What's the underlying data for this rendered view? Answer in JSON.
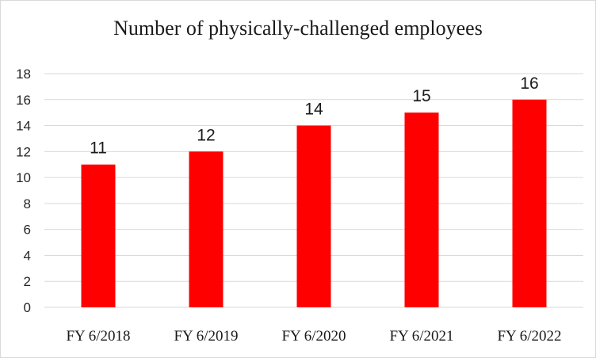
{
  "chart_data": {
    "type": "bar",
    "title": "Number of physically-challenged employees",
    "categories": [
      "FY 6/2018",
      "FY 6/2019",
      "FY 6/2020",
      "FY 6/2021",
      "FY 6/2022"
    ],
    "values": [
      11,
      12,
      14,
      15,
      16
    ],
    "data_labels": [
      "11",
      "12",
      "14",
      "15",
      "16"
    ],
    "xlabel": "",
    "ylabel": "",
    "ylim": [
      0,
      18
    ],
    "yticks": [
      "0",
      "2",
      "4",
      "6",
      "8",
      "10",
      "12",
      "14",
      "16",
      "18"
    ],
    "grid": true,
    "legend": "none",
    "bar_color": "#ff0000",
    "grid_color": "#d9d9d9"
  }
}
